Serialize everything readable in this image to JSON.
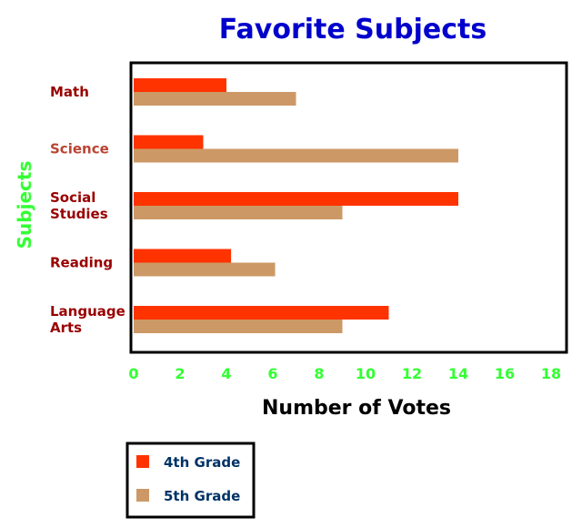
{
  "chart_data": {
    "type": "bar",
    "orientation": "horizontal",
    "title": "Favorite Subjects",
    "xlabel": "Number of Votes",
    "ylabel": "Subjects",
    "xlim": [
      0,
      18
    ],
    "xticks": [
      0,
      2,
      4,
      6,
      8,
      10,
      12,
      14,
      16,
      18
    ],
    "grid": false,
    "legend_placement": "bottom-left",
    "categories": [
      {
        "lines": [
          "Math"
        ],
        "color": "#990000"
      },
      {
        "lines": [
          "Science"
        ],
        "color": "#bb4433"
      },
      {
        "lines": [
          "Social",
          "Studies"
        ],
        "color": "#990000"
      },
      {
        "lines": [
          "Reading"
        ],
        "color": "#990000"
      },
      {
        "lines": [
          "Language",
          "Arts"
        ],
        "color": "#990000"
      }
    ],
    "series": [
      {
        "name": "4th Grade",
        "color": "#ff3300",
        "values": [
          4,
          3,
          14,
          4.2,
          11
        ]
      },
      {
        "name": "5th Grade",
        "color": "#cc9966",
        "values": [
          7,
          14,
          9,
          6.1,
          9
        ]
      }
    ],
    "colors": {
      "title": "#0000cc",
      "ticks": "#33ff33",
      "ylabel": "#33ff33",
      "xlabel": "#000000",
      "legend_text": "#003366"
    }
  }
}
